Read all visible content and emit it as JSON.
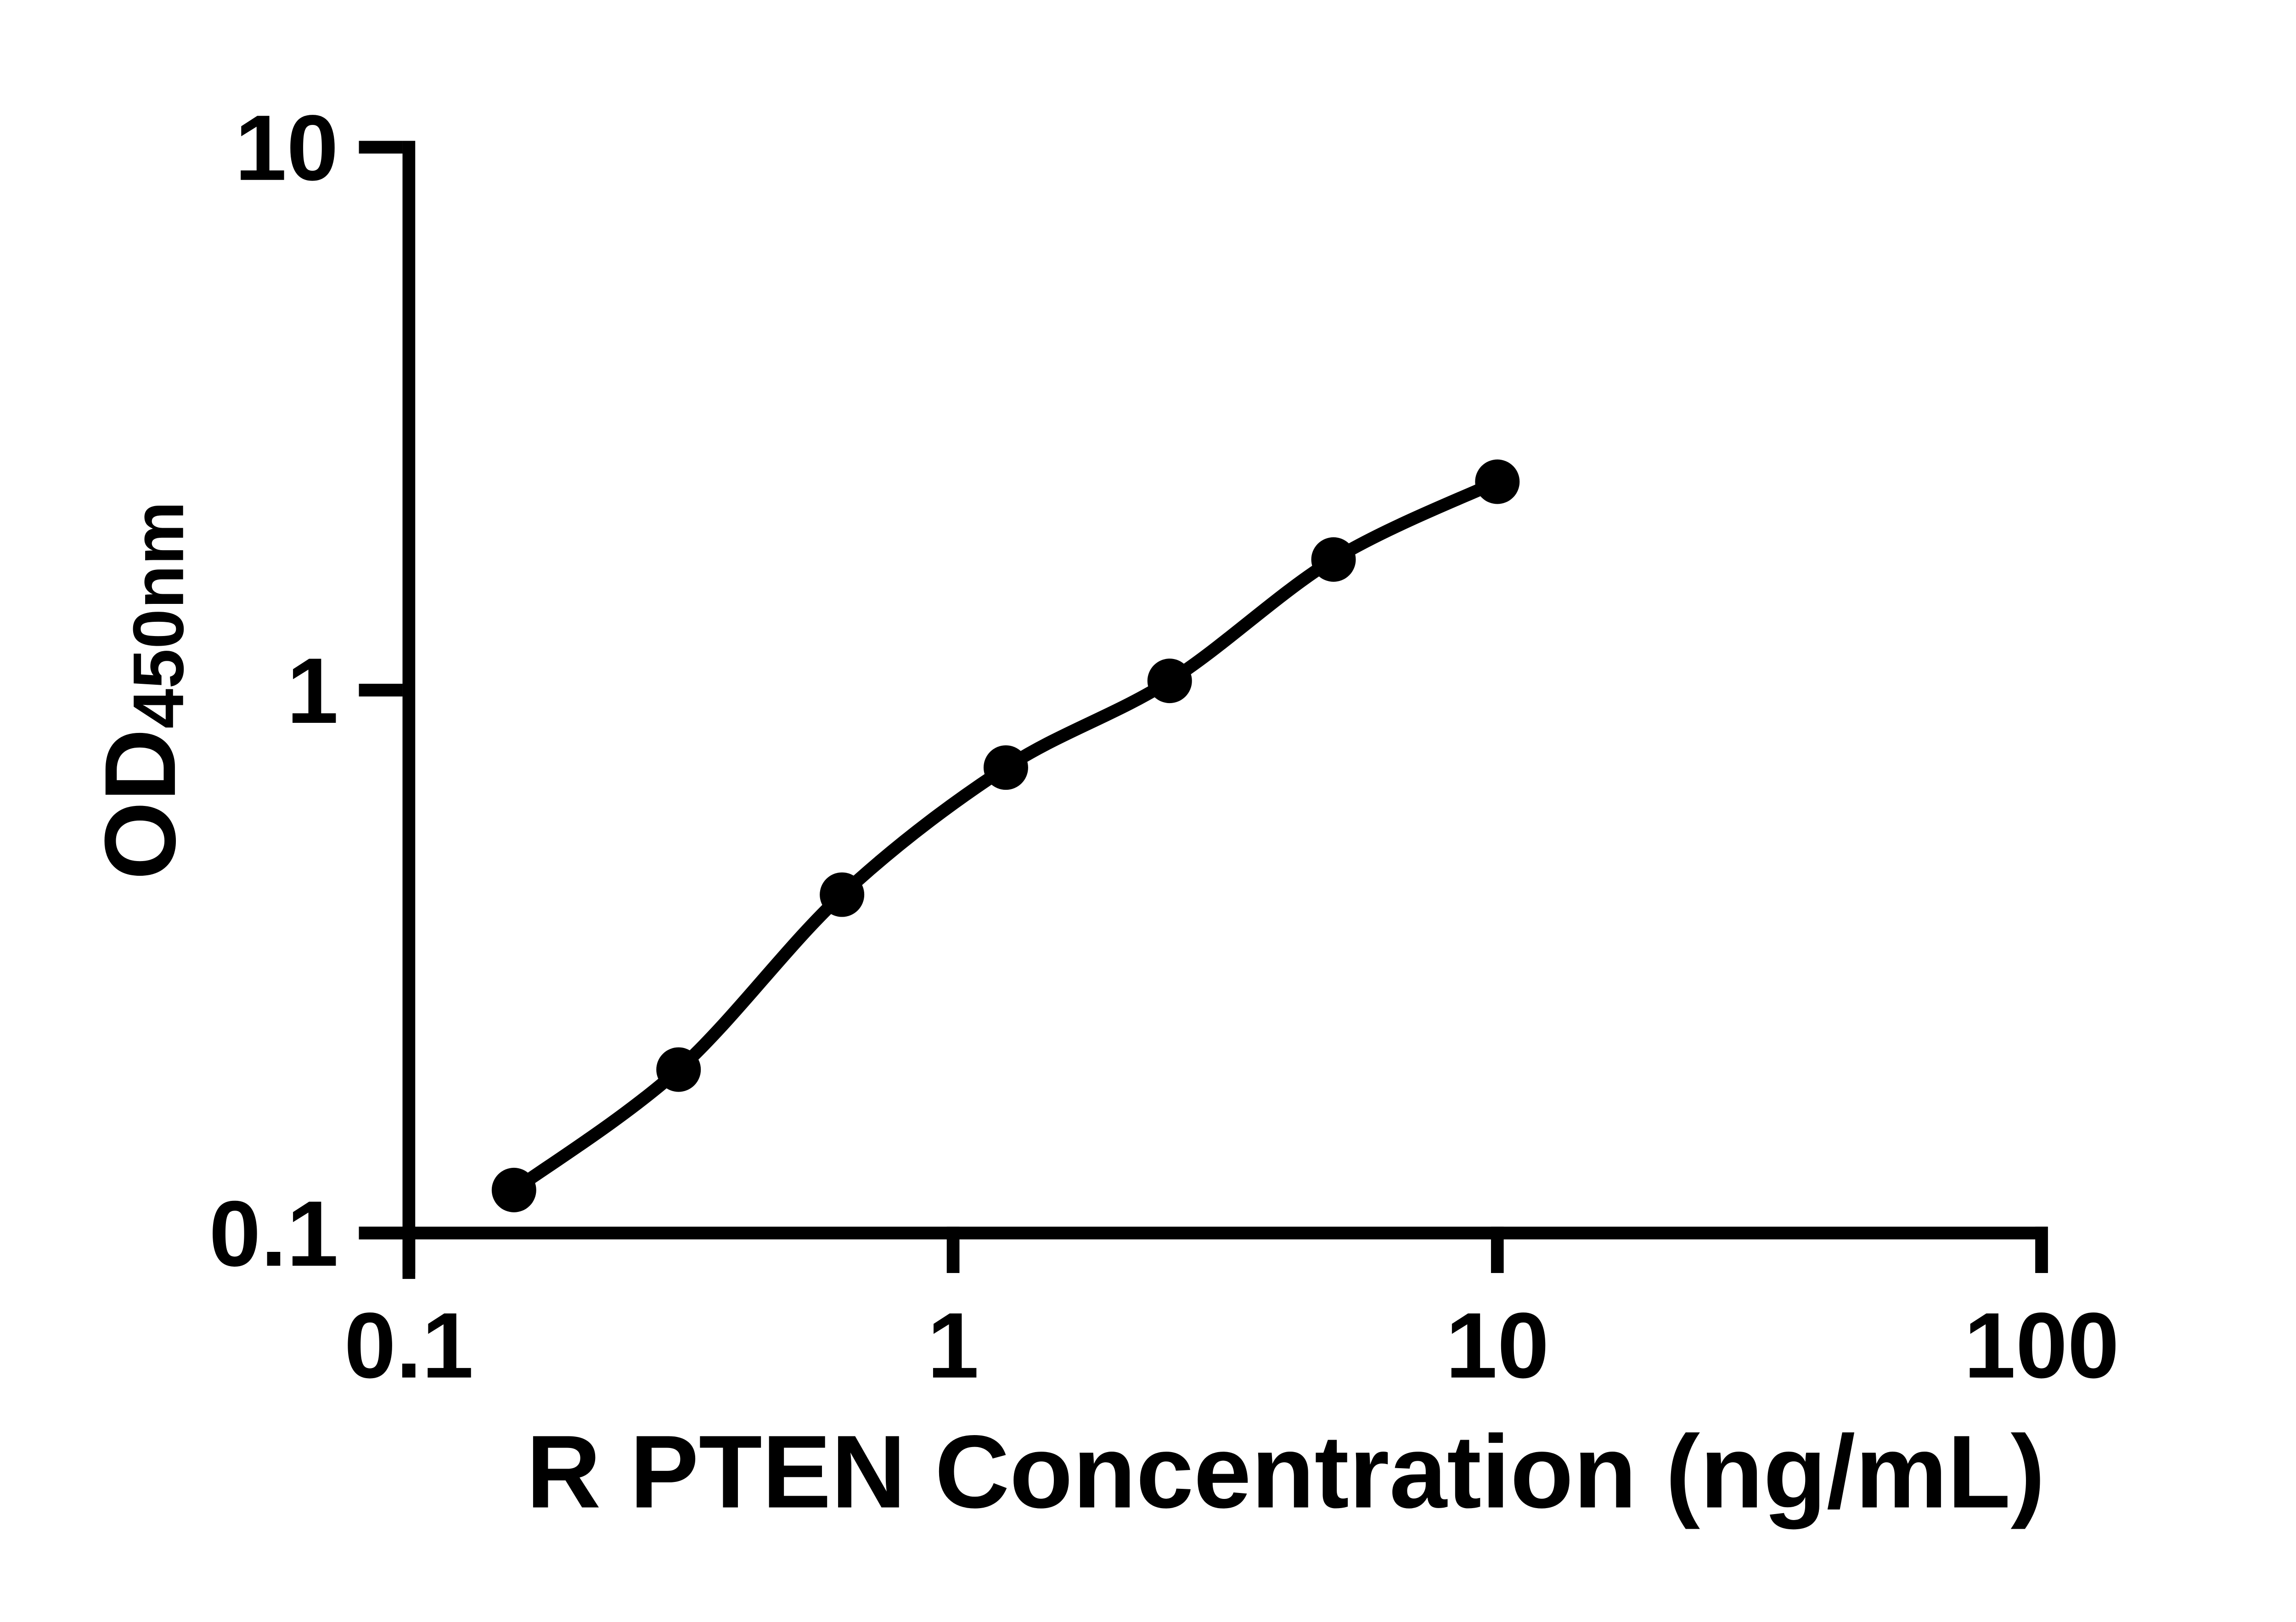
{
  "figure": {
    "background_color": "#ffffff",
    "ink_color": "#000000"
  },
  "chart_data": {
    "type": "scatter",
    "subtype": "standard-curve-with-fit-line",
    "title": "",
    "xlabel": "R PTEN Concentration (ng/mL)",
    "ylabel_main": "OD",
    "ylabel_sub": "450nm",
    "x_scale": "log10",
    "y_scale": "log10",
    "xlim": [
      0.1,
      100
    ],
    "ylim": [
      0.1,
      10
    ],
    "grid": "off",
    "legend": "none",
    "x_ticks": [
      {
        "value": 0.1,
        "label": "0.1"
      },
      {
        "value": 1,
        "label": "1"
      },
      {
        "value": 10,
        "label": "10"
      },
      {
        "value": 100,
        "label": "100"
      }
    ],
    "y_ticks": [
      {
        "value": 0.1,
        "label": "0.1"
      },
      {
        "value": 1,
        "label": "1"
      },
      {
        "value": 10,
        "label": "10"
      }
    ],
    "series": [
      {
        "name": "standard-curve",
        "marker": "filled-circle",
        "marker_color": "#000000",
        "line_color": "#000000",
        "x": [
          0.156,
          0.313,
          0.625,
          1.25,
          2.5,
          5,
          10
        ],
        "y": [
          0.12,
          0.2,
          0.42,
          0.72,
          1.04,
          1.74,
          2.42
        ]
      }
    ]
  }
}
